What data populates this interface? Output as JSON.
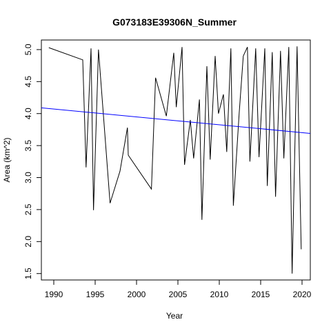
{
  "chart_data": {
    "type": "line",
    "title": "G073183E39306N_Summer",
    "xlabel": "Year",
    "ylabel": "Area (km^2)",
    "xlim": [
      1988.5,
      2021
    ],
    "ylim": [
      1.4,
      5.15
    ],
    "xticks": [
      1990,
      1995,
      2000,
      2005,
      2010,
      2015,
      2020
    ],
    "yticks": [
      1.5,
      2.0,
      2.5,
      3.0,
      3.5,
      4.0,
      4.5,
      5.0
    ],
    "ytick_labels": [
      "1.5",
      "2.0",
      "2.5",
      "3.0",
      "3.5",
      "4.0",
      "4.5",
      "5.0"
    ],
    "grid": false,
    "series": [
      {
        "color": "#000000",
        "x": [
          1989.4,
          1993.5,
          1993.9,
          1994.5,
          1994.8,
          1995.4,
          1996.8,
          1998.0,
          1998.9,
          1999.0,
          2001.8,
          2002.3,
          2003.6,
          2004.5,
          2004.8,
          2005.5,
          2005.8,
          2006.5,
          2006.9,
          2007.6,
          2007.9,
          2008.5,
          2008.9,
          2009.5,
          2009.9,
          2010.5,
          2010.9,
          2011.4,
          2011.7,
          2012.4,
          2012.9,
          2013.4,
          2013.7,
          2014.4,
          2014.8,
          2015.5,
          2015.8,
          2016.4,
          2016.8,
          2017.4,
          2017.8,
          2018.4,
          2018.8,
          2019.4,
          2019.9
        ],
        "y": [
          5.03,
          4.84,
          3.16,
          5.02,
          2.49,
          5.0,
          2.6,
          3.1,
          3.78,
          3.35,
          2.82,
          4.56,
          3.96,
          4.95,
          4.1,
          5.04,
          3.2,
          3.9,
          3.3,
          4.22,
          2.34,
          4.74,
          3.28,
          4.9,
          4.0,
          4.3,
          3.4,
          5.02,
          2.56,
          4.0,
          4.9,
          5.04,
          3.25,
          5.02,
          3.32,
          5.02,
          2.87,
          4.96,
          2.7,
          4.98,
          3.3,
          5.04,
          1.5,
          5.05,
          1.88
        ]
      },
      {
        "color": "#0000ff",
        "x": [
          1988.5,
          2021
        ],
        "y": [
          4.09,
          3.69
        ]
      }
    ]
  }
}
